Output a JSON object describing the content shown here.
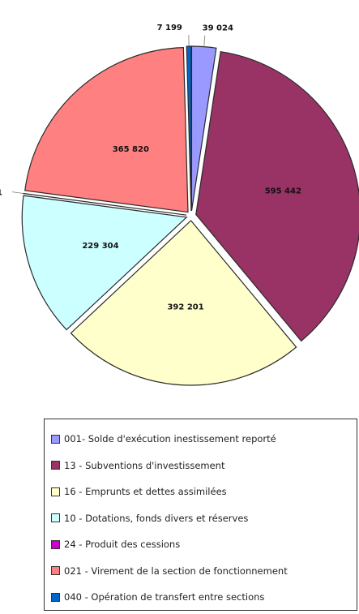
{
  "chart_data": {
    "type": "pie",
    "slices": [
      {
        "label": "001- Solde d'exécution inestissement reporté",
        "value": 39024,
        "value_label": "39 024",
        "color": "#9999ff"
      },
      {
        "label": "13 - Subventions d'investissement",
        "value": 595442,
        "value_label": "595 442",
        "color": "#993366"
      },
      {
        "label": "16 - Emprunts et dettes assimilées",
        "value": 392201,
        "value_label": "392 201",
        "color": "#ffffcc"
      },
      {
        "label": "10 - Dotations, fonds divers et réserves",
        "value": 229304,
        "value_label": "229 304",
        "color": "#ccffff"
      },
      {
        "label": "24 - Produit des cessions",
        "value": 1,
        "value_label": "1",
        "color": "#cc00cc"
      },
      {
        "label": "021 - Virement de la section de fonctionnement",
        "value": 365820,
        "value_label": "365 820",
        "color": "#ff8080"
      },
      {
        "label": "040 - Opération de transfert entre sections",
        "value": 7199,
        "value_label": "7 199",
        "color": "#0066cc"
      }
    ],
    "start_angle_deg": 0,
    "direction": "clockwise",
    "legend_position": "bottom",
    "exploded": true
  }
}
